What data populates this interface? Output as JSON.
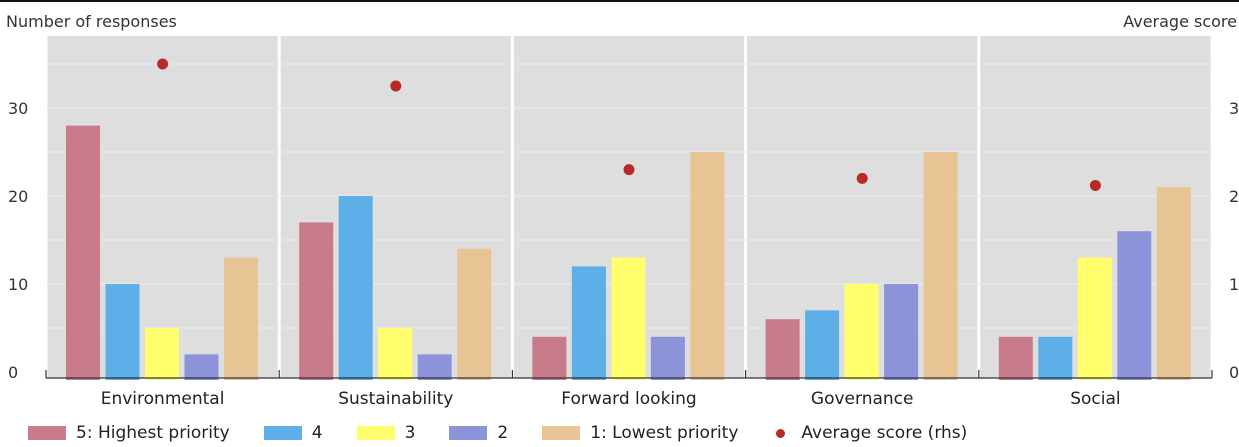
{
  "chart_data": {
    "type": "bar",
    "ylabel": "Number of responses",
    "y2label": "Average score",
    "ylim": [
      0,
      36
    ],
    "y2lim": [
      0,
      3.6
    ],
    "yticks": [
      0,
      10,
      20,
      30
    ],
    "y2ticks": [
      0,
      1,
      2,
      3
    ],
    "grid": true,
    "legend_position": "bottom",
    "categories": [
      "Environmental",
      "Sustainability",
      "Forward looking",
      "Governance",
      "Social"
    ],
    "series": [
      {
        "name": "5: Highest priority",
        "color": "#c77b8b",
        "values": [
          28,
          17,
          4,
          6,
          4
        ]
      },
      {
        "name": "4",
        "color": "#5eaee8",
        "values": [
          10,
          20,
          12,
          7,
          4
        ]
      },
      {
        "name": "3",
        "color": "#ffff6e",
        "values": [
          5,
          5,
          13,
          10,
          13
        ]
      },
      {
        "name": "2",
        "color": "#8c93d9",
        "values": [
          2,
          2,
          4,
          10,
          16
        ]
      },
      {
        "name": "1: Lowest priority",
        "color": "#e8c495",
        "values": [
          13,
          14,
          25,
          25,
          21
        ]
      }
    ],
    "average_score": {
      "name": "Average score (rhs)",
      "color": "#b82a2a",
      "values": [
        3.5,
        3.25,
        2.3,
        2.2,
        2.12
      ]
    }
  }
}
